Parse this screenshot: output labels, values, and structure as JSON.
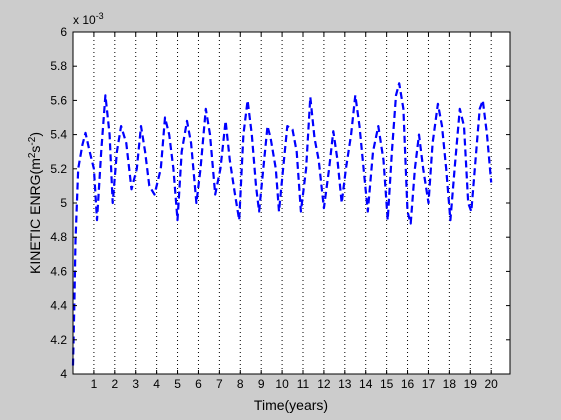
{
  "figure": {
    "background": "#cccccc",
    "axes_background": "#ffffff",
    "line_color": "#0000ff"
  },
  "chart_data": {
    "type": "line",
    "title": "",
    "xlabel": "Time(years)",
    "ylabel_base": "KINETIC ENRG(m",
    "ylabel_sup1": "2",
    "ylabel_mid": "s",
    "ylabel_sup2": "-2",
    "ylabel_end": ")",
    "y_multiplier_base": "x 10",
    "y_multiplier_exp": "-3",
    "xlim": [
      0,
      20.9
    ],
    "ylim": [
      0.004,
      0.006
    ],
    "x_ticks": [
      1,
      2,
      3,
      4,
      5,
      6,
      7,
      8,
      9,
      10,
      11,
      12,
      13,
      14,
      15,
      16,
      17,
      18,
      19,
      20
    ],
    "x_tick_labels": [
      "1",
      "2",
      "3",
      "4",
      "5",
      "6",
      "7",
      "8",
      "9",
      "10",
      "11",
      "12",
      "13",
      "14",
      "15",
      "16",
      "17",
      "18",
      "19",
      "20"
    ],
    "y_ticks": [
      0.004,
      0.0042,
      0.0044,
      0.0046,
      0.0048,
      0.005,
      0.0052,
      0.0054,
      0.0056,
      0.0058,
      0.006
    ],
    "y_tick_labels": [
      "4",
      "4.2",
      "4.4",
      "4.6",
      "4.8",
      "5",
      "5.2",
      "5.4",
      "5.6",
      "5.8",
      "6"
    ],
    "vertical_grid": true,
    "horizontal_grid": false,
    "line_style": "dashed",
    "series": [
      {
        "values": [
          [
            0.0,
            0.00405
          ],
          [
            0.07,
            0.00445
          ],
          [
            0.12,
            0.00478
          ],
          [
            0.25,
            0.0052
          ],
          [
            0.45,
            0.00534
          ],
          [
            0.6,
            0.00541
          ],
          [
            0.8,
            0.0053
          ],
          [
            1.0,
            0.0052
          ],
          [
            1.15,
            0.0049
          ],
          [
            1.35,
            0.0053
          ],
          [
            1.55,
            0.00563
          ],
          [
            1.75,
            0.0054
          ],
          [
            1.9,
            0.005
          ],
          [
            2.1,
            0.0053
          ],
          [
            2.3,
            0.00545
          ],
          [
            2.55,
            0.00535
          ],
          [
            2.8,
            0.00508
          ],
          [
            3.05,
            0.0052
          ],
          [
            3.25,
            0.00545
          ],
          [
            3.45,
            0.0053
          ],
          [
            3.65,
            0.0051
          ],
          [
            3.9,
            0.00505
          ],
          [
            4.2,
            0.0052
          ],
          [
            4.4,
            0.0055
          ],
          [
            4.6,
            0.0054
          ],
          [
            4.8,
            0.0052
          ],
          [
            5.0,
            0.0049
          ],
          [
            5.2,
            0.0053
          ],
          [
            5.45,
            0.00548
          ],
          [
            5.65,
            0.00535
          ],
          [
            5.9,
            0.005
          ],
          [
            6.1,
            0.0052
          ],
          [
            6.35,
            0.00555
          ],
          [
            6.55,
            0.0054
          ],
          [
            6.8,
            0.00505
          ],
          [
            7.05,
            0.0052
          ],
          [
            7.3,
            0.00548
          ],
          [
            7.5,
            0.00525
          ],
          [
            7.75,
            0.00505
          ],
          [
            7.95,
            0.0049
          ],
          [
            8.15,
            0.0054
          ],
          [
            8.35,
            0.0056
          ],
          [
            8.55,
            0.0054
          ],
          [
            8.75,
            0.0051
          ],
          [
            8.9,
            0.00495
          ],
          [
            9.1,
            0.0052
          ],
          [
            9.3,
            0.00545
          ],
          [
            9.45,
            0.00538
          ],
          [
            9.7,
            0.0052
          ],
          [
            9.85,
            0.00495
          ],
          [
            10.05,
            0.0052
          ],
          [
            10.25,
            0.00545
          ],
          [
            10.5,
            0.00543
          ],
          [
            10.7,
            0.0053
          ],
          [
            10.9,
            0.00495
          ],
          [
            11.15,
            0.0052
          ],
          [
            11.35,
            0.00562
          ],
          [
            11.55,
            0.00538
          ],
          [
            11.75,
            0.00525
          ],
          [
            12.0,
            0.00497
          ],
          [
            12.25,
            0.0052
          ],
          [
            12.45,
            0.00542
          ],
          [
            12.65,
            0.00525
          ],
          [
            12.85,
            0.005
          ],
          [
            13.05,
            0.0052
          ],
          [
            13.3,
            0.0054
          ],
          [
            13.5,
            0.00563
          ],
          [
            13.7,
            0.00545
          ],
          [
            13.9,
            0.0052
          ],
          [
            14.1,
            0.00495
          ],
          [
            14.35,
            0.0053
          ],
          [
            14.6,
            0.00545
          ],
          [
            14.85,
            0.00525
          ],
          [
            15.05,
            0.0049
          ],
          [
            15.25,
            0.0053
          ],
          [
            15.45,
            0.00563
          ],
          [
            15.6,
            0.0057
          ],
          [
            15.8,
            0.00555
          ],
          [
            16.0,
            0.00495
          ],
          [
            16.15,
            0.00488
          ],
          [
            16.35,
            0.0052
          ],
          [
            16.55,
            0.0054
          ],
          [
            16.75,
            0.0052
          ],
          [
            17.0,
            0.005
          ],
          [
            17.2,
            0.00535
          ],
          [
            17.45,
            0.00558
          ],
          [
            17.65,
            0.00545
          ],
          [
            17.85,
            0.0052
          ],
          [
            18.05,
            0.0049
          ],
          [
            18.25,
            0.0052
          ],
          [
            18.5,
            0.00555
          ],
          [
            18.7,
            0.00545
          ],
          [
            18.9,
            0.005
          ],
          [
            19.05,
            0.00495
          ],
          [
            19.25,
            0.00525
          ],
          [
            19.45,
            0.00555
          ],
          [
            19.6,
            0.0056
          ],
          [
            19.8,
            0.0054
          ],
          [
            20.0,
            0.00512
          ]
        ]
      }
    ]
  }
}
